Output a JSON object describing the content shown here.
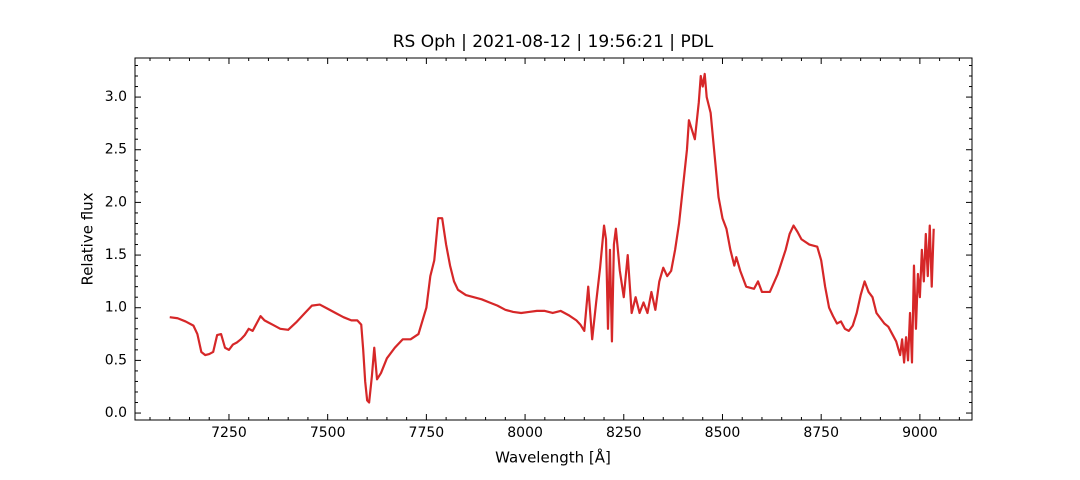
{
  "chart_data": {
    "type": "line",
    "title": "RS Oph | 2021-08-12 | 19:56:21 | PDL",
    "xlabel": "Wavelength [Å]",
    "ylabel": "Relative flux",
    "xlim": [
      7012,
      9132
    ],
    "ylim": [
      -0.066,
      3.371
    ],
    "xticks": [
      7250,
      7500,
      7750,
      8000,
      8250,
      8500,
      8750,
      9000
    ],
    "yticks": [
      {
        "value": 0,
        "label": "0.0"
      },
      0.5,
      {
        "value": 1,
        "label": "1.0"
      },
      1.5,
      {
        "value": 2,
        "label": "2.0"
      },
      2.5,
      {
        "value": 3,
        "label": "3.0"
      }
    ],
    "xminorticks": [
      7050,
      7100,
      7150,
      7200,
      7300,
      7350,
      7400,
      7450,
      7550,
      7600,
      7650,
      7700,
      7800,
      7850,
      7900,
      7950,
      8050,
      8100,
      8150,
      8200,
      8300,
      8350,
      8400,
      8450,
      8550,
      8600,
      8650,
      8700,
      8800,
      8850,
      8900,
      8950,
      9050,
      9100
    ],
    "yminorticks": [
      0.1,
      0.2,
      0.3,
      0.4,
      0.6,
      0.7,
      0.8,
      0.9,
      1.1,
      1.2,
      1.3,
      1.4,
      1.6,
      1.7,
      1.8,
      1.9,
      2.1,
      2.2,
      2.3,
      2.4,
      2.6,
      2.7,
      2.8,
      2.9,
      3.1,
      3.2,
      3.3
    ],
    "grid": false,
    "series": [
      {
        "name": "RS Oph",
        "color": "#d62728",
        "x": [
          7100,
          7120,
          7140,
          7160,
          7170,
          7180,
          7190,
          7200,
          7210,
          7220,
          7230,
          7240,
          7250,
          7260,
          7270,
          7280,
          7290,
          7300,
          7310,
          7320,
          7330,
          7340,
          7350,
          7360,
          7380,
          7400,
          7420,
          7440,
          7460,
          7480,
          7500,
          7520,
          7540,
          7560,
          7575,
          7585,
          7590,
          7595,
          7600,
          7605,
          7612,
          7618,
          7625,
          7635,
          7650,
          7670,
          7690,
          7710,
          7730,
          7750,
          7760,
          7770,
          7780,
          7790,
          7800,
          7810,
          7820,
          7830,
          7850,
          7870,
          7890,
          7910,
          7930,
          7950,
          7970,
          7990,
          8010,
          8030,
          8050,
          8070,
          8090,
          8110,
          8130,
          8140,
          8150,
          8160,
          8170,
          8180,
          8190,
          8200,
          8205,
          8210,
          8215,
          8220,
          8225,
          8230,
          8240,
          8250,
          8260,
          8270,
          8280,
          8290,
          8300,
          8310,
          8320,
          8330,
          8340,
          8350,
          8360,
          8370,
          8380,
          8390,
          8400,
          8410,
          8415,
          8420,
          8430,
          8440,
          8445,
          8450,
          8455,
          8460,
          8470,
          8480,
          8490,
          8500,
          8510,
          8520,
          8530,
          8535,
          8545,
          8560,
          8580,
          8590,
          8600,
          8620,
          8640,
          8660,
          8670,
          8680,
          8690,
          8700,
          8720,
          8740,
          8750,
          8760,
          8770,
          8780,
          8790,
          8800,
          8810,
          8820,
          8830,
          8840,
          8850,
          8860,
          8870,
          8880,
          8890,
          8900,
          8910,
          8920,
          8930,
          8940,
          8950,
          8955,
          8960,
          8965,
          8970,
          8975,
          8980,
          8985,
          8990,
          8995,
          9000,
          9005,
          9010,
          9015,
          9020,
          9025,
          9030,
          9035
        ],
        "values": [
          0.91,
          0.9,
          0.87,
          0.83,
          0.75,
          0.58,
          0.55,
          0.56,
          0.58,
          0.74,
          0.75,
          0.62,
          0.6,
          0.65,
          0.67,
          0.7,
          0.74,
          0.8,
          0.78,
          0.85,
          0.92,
          0.88,
          0.86,
          0.84,
          0.8,
          0.79,
          0.86,
          0.94,
          1.02,
          1.03,
          0.99,
          0.95,
          0.91,
          0.88,
          0.88,
          0.84,
          0.6,
          0.3,
          0.12,
          0.1,
          0.35,
          0.62,
          0.32,
          0.38,
          0.52,
          0.62,
          0.7,
          0.7,
          0.75,
          1.0,
          1.3,
          1.45,
          1.85,
          1.85,
          1.6,
          1.4,
          1.25,
          1.17,
          1.12,
          1.1,
          1.08,
          1.05,
          1.02,
          0.98,
          0.96,
          0.95,
          0.96,
          0.97,
          0.97,
          0.95,
          0.97,
          0.93,
          0.88,
          0.84,
          0.78,
          1.2,
          0.7,
          1.05,
          1.38,
          1.78,
          1.65,
          0.8,
          1.55,
          0.68,
          1.6,
          1.75,
          1.35,
          1.1,
          1.5,
          0.95,
          1.1,
          0.95,
          1.05,
          0.95,
          1.15,
          0.98,
          1.25,
          1.38,
          1.3,
          1.35,
          1.55,
          1.8,
          2.15,
          2.5,
          2.78,
          2.72,
          2.6,
          2.95,
          3.2,
          3.1,
          3.22,
          3.0,
          2.85,
          2.45,
          2.05,
          1.85,
          1.75,
          1.55,
          1.4,
          1.48,
          1.35,
          1.2,
          1.18,
          1.25,
          1.15,
          1.15,
          1.32,
          1.55,
          1.7,
          1.78,
          1.72,
          1.65,
          1.6,
          1.58,
          1.45,
          1.2,
          1.0,
          0.92,
          0.85,
          0.87,
          0.8,
          0.78,
          0.83,
          0.95,
          1.12,
          1.25,
          1.15,
          1.1,
          0.95,
          0.9,
          0.85,
          0.82,
          0.75,
          0.68,
          0.55,
          0.7,
          0.48,
          0.72,
          0.5,
          0.95,
          0.48,
          1.4,
          0.8,
          1.32,
          1.1,
          1.55,
          1.25,
          1.7,
          1.3,
          1.78,
          1.2,
          1.75
        ]
      }
    ]
  }
}
